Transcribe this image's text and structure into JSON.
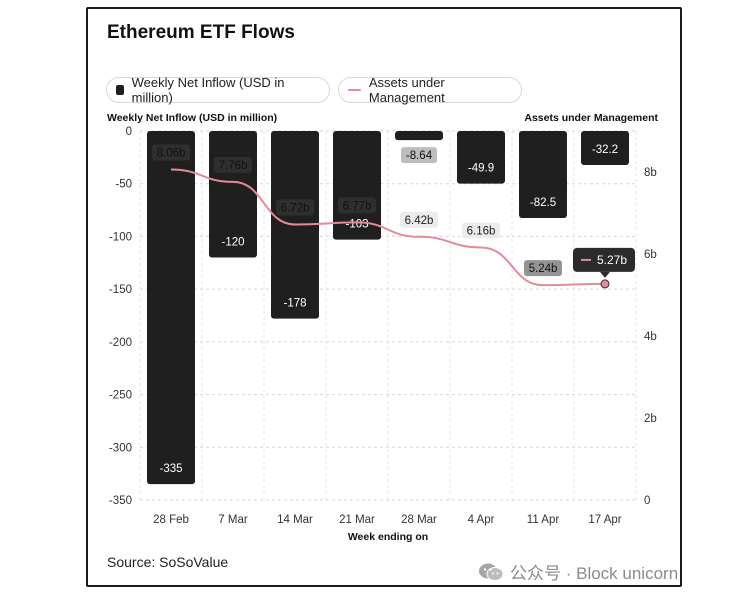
{
  "title": "Ethereum ETF Flows",
  "legend": {
    "inflow_label": "Weekly Net Inflow (USD in million)",
    "aum_label": "Assets under Management"
  },
  "axis": {
    "left_label": "Weekly Net Inflow (USD in million)",
    "right_label": "Assets under Management",
    "x_label": "Week ending on"
  },
  "source": "Source: SoSoValue",
  "watermark": "公众号 · Block unicorn",
  "colors": {
    "bar": "#1f1f1f",
    "line": "#e48a98",
    "grid": "#d6d6d6"
  },
  "chart_data": {
    "type": "bar",
    "title": "Ethereum ETF Flows",
    "categories": [
      "28 Feb",
      "7 Mar",
      "14 Mar",
      "21 Mar",
      "28 Mar",
      "4 Apr",
      "11 Apr",
      "17 Apr"
    ],
    "xlabel": "Week ending on",
    "ylabel": "Weekly Net Inflow (USD in million)",
    "y2label": "Assets under Management",
    "ylim": [
      -350,
      0
    ],
    "y2lim": [
      0,
      9
    ],
    "yticks": [
      0,
      -50,
      -100,
      -150,
      -200,
      -250,
      -300,
      -350
    ],
    "y2ticks": [
      0,
      2,
      4,
      6,
      8
    ],
    "y2tick_labels": [
      "0",
      "2b",
      "4b",
      "6b",
      "8b"
    ],
    "grid": "horizontal dashed",
    "series": [
      {
        "name": "Weekly Net Inflow (USD in million)",
        "type": "bar",
        "values": [
          -335,
          -120,
          -178,
          -103,
          -8.64,
          -49.9,
          -82.5,
          -32.2
        ],
        "labels": [
          "-335",
          "-120",
          "-178",
          "-103",
          "-8.64",
          "-49.9",
          "-82.5",
          "-32.2"
        ]
      },
      {
        "name": "Assets under Management",
        "type": "line",
        "axis": "right",
        "values": [
          8.06,
          7.76,
          6.72,
          6.77,
          6.42,
          6.16,
          5.24,
          5.27
        ],
        "labels": [
          "8.06b",
          "7.76b",
          "6.72b",
          "6.77b",
          "6.42b",
          "6.16b",
          "5.24b",
          "5.27b"
        ],
        "highlighted": "5.27b"
      }
    ]
  }
}
